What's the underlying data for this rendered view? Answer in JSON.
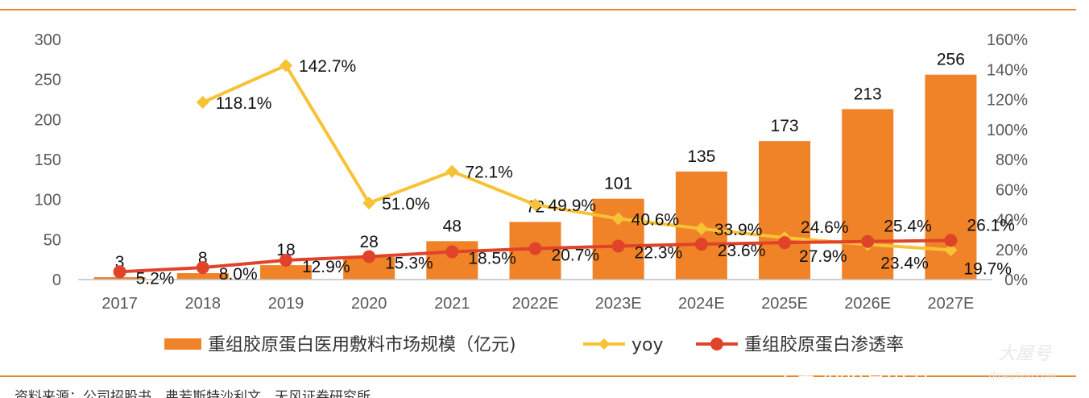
{
  "colors": {
    "bar": "#F08228",
    "yoy": "#F8C236",
    "penetration": "#E0432A",
    "rule": "#E8862E",
    "axis": "#BFBFBF"
  },
  "chart_data": {
    "type": "bar",
    "categories": [
      "2017",
      "2018",
      "2019",
      "2020",
      "2021",
      "2022E",
      "2023E",
      "2024E",
      "2025E",
      "2026E",
      "2027E"
    ],
    "series": [
      {
        "name": "重组胶原蛋白医用敷料市场规模（亿元)",
        "type": "bar",
        "axis": "left",
        "values": [
          3,
          8,
          18,
          28,
          48,
          72,
          101,
          135,
          173,
          213,
          256
        ],
        "labels": [
          "3",
          "8",
          "18",
          "28",
          "48",
          "72",
          "101",
          "135",
          "173",
          "213",
          "256"
        ]
      },
      {
        "name": "yoy",
        "type": "line",
        "axis": "right",
        "values": [
          null,
          118.1,
          142.7,
          51.0,
          72.1,
          49.9,
          40.6,
          33.9,
          27.9,
          23.4,
          19.7
        ],
        "labels": [
          "",
          "118.1%",
          "142.7%",
          "51.0%",
          "72.1%",
          "49.9%",
          "40.6%",
          "33.9%",
          "27.9%",
          "23.4%",
          "19.7%"
        ]
      },
      {
        "name": "重组胶原蛋白渗透率",
        "type": "line",
        "axis": "right",
        "values": [
          5.2,
          8.0,
          12.9,
          15.3,
          18.5,
          20.7,
          22.3,
          23.6,
          24.6,
          25.4,
          26.1
        ],
        "labels": [
          "5.2%",
          "8.0%",
          "12.9%",
          "15.3%",
          "18.5%",
          "20.7%",
          "22.3%",
          "23.6%",
          "24.6%",
          "25.4%",
          "26.1%"
        ]
      }
    ],
    "y_left": {
      "min": 0,
      "max": 300,
      "ticks": [
        "0",
        "50",
        "100",
        "150",
        "200",
        "250",
        "300"
      ]
    },
    "y_right": {
      "min": 0,
      "max": 160,
      "ticks": [
        "0%",
        "20%",
        "40%",
        "60%",
        "80%",
        "100%",
        "120%",
        "140%",
        "160%"
      ]
    },
    "grid": false,
    "legend_position": "bottom"
  },
  "source_text": "资料来源：公司招股书，弗若斯特沙利文，天风证券研究所",
  "watermark": {
    "text": "头条 @运青出书",
    "site": "dawuhao.com",
    "brand": "大屋号"
  }
}
